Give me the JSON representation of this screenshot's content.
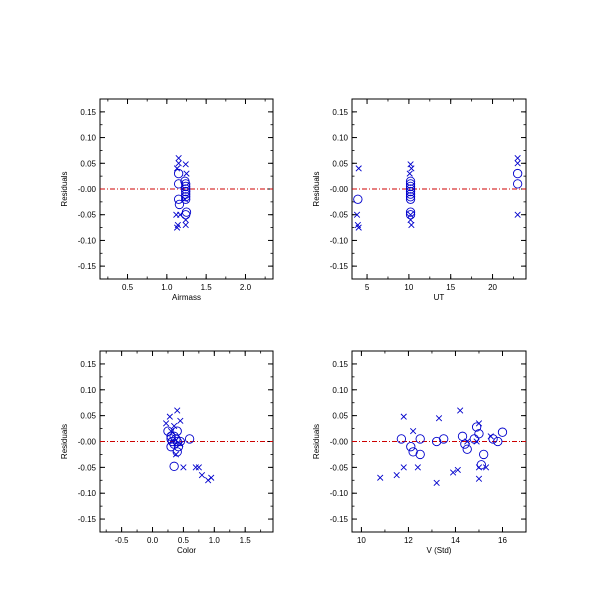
{
  "chart_data": [
    {
      "type": "scatter",
      "xlabel": "Airmass",
      "ylabel": "Residuals",
      "xlim": [
        0.15,
        2.35
      ],
      "ylim": [
        -0.175,
        0.175
      ],
      "xticks": [
        0.5,
        1.0,
        1.5,
        2.0
      ],
      "xtick_labels": [
        "0.5",
        "1.0",
        "1.5",
        "2.0"
      ],
      "yticks": [
        -0.15,
        -0.1,
        -0.05,
        0.0,
        0.05,
        0.1,
        0.15
      ],
      "ytick_labels": [
        "-0.15",
        "-0.10",
        "-0.05",
        "-0.00",
        "0.05",
        "0.10",
        "0.15"
      ],
      "zero_line": true,
      "marker_color": "#0000cc",
      "zero_line_color": "#cc0000",
      "series": [
        {
          "marker": "x",
          "points": [
            [
              1.15,
              0.06
            ],
            [
              1.15,
              0.05
            ],
            [
              1.13,
              0.04
            ],
            [
              1.12,
              -0.05
            ],
            [
              1.14,
              -0.07
            ],
            [
              1.13,
              -0.075
            ],
            [
              1.17,
              -0.05
            ],
            [
              1.24,
              0.048
            ],
            [
              1.25,
              0.03
            ],
            [
              1.24,
              -0.06
            ],
            [
              1.24,
              -0.07
            ],
            [
              1.23,
              -0.02
            ]
          ]
        },
        {
          "marker": "o",
          "points": [
            [
              1.15,
              0.03
            ],
            [
              1.15,
              0.01
            ],
            [
              1.15,
              -0.02
            ],
            [
              1.16,
              -0.03
            ],
            [
              1.23,
              0.015
            ],
            [
              1.24,
              0.01
            ],
            [
              1.24,
              0.005
            ],
            [
              1.24,
              0.0
            ],
            [
              1.24,
              -0.005
            ],
            [
              1.24,
              -0.01
            ],
            [
              1.24,
              -0.015
            ],
            [
              1.24,
              -0.02
            ],
            [
              1.25,
              -0.045
            ],
            [
              1.24,
              -0.05
            ]
          ]
        }
      ]
    },
    {
      "type": "scatter",
      "xlabel": "UT",
      "ylabel": "Residuals",
      "xlim": [
        3.2,
        24.0
      ],
      "ylim": [
        -0.175,
        0.175
      ],
      "xticks": [
        5,
        10,
        15,
        20
      ],
      "xtick_labels": [
        "5",
        "10",
        "15",
        "20"
      ],
      "yticks": [
        -0.15,
        -0.1,
        -0.05,
        0.0,
        0.05,
        0.1,
        0.15
      ],
      "ytick_labels": [
        "-0.15",
        "-0.10",
        "-0.05",
        "-0.00",
        "0.05",
        "0.10",
        "0.15"
      ],
      "zero_line": true,
      "marker_color": "#0000cc",
      "zero_line_color": "#cc0000",
      "series": [
        {
          "marker": "x",
          "points": [
            [
              4.0,
              0.04
            ],
            [
              3.8,
              -0.05
            ],
            [
              3.9,
              -0.07
            ],
            [
              4.0,
              -0.075
            ],
            [
              10.2,
              0.048
            ],
            [
              10.3,
              0.04
            ],
            [
              10.1,
              0.03
            ],
            [
              10.2,
              -0.05
            ],
            [
              10.2,
              -0.06
            ],
            [
              10.3,
              -0.07
            ],
            [
              23.0,
              0.06
            ],
            [
              23.0,
              0.05
            ],
            [
              23.0,
              -0.05
            ]
          ]
        },
        {
          "marker": "o",
          "points": [
            [
              3.9,
              -0.02
            ],
            [
              10.2,
              0.015
            ],
            [
              10.2,
              0.01
            ],
            [
              10.2,
              0.005
            ],
            [
              10.2,
              0.0
            ],
            [
              10.2,
              -0.005
            ],
            [
              10.2,
              -0.01
            ],
            [
              10.2,
              -0.015
            ],
            [
              10.2,
              -0.02
            ],
            [
              10.2,
              -0.045
            ],
            [
              10.2,
              -0.05
            ],
            [
              23.0,
              0.03
            ],
            [
              23.0,
              0.01
            ]
          ]
        }
      ]
    },
    {
      "type": "scatter",
      "xlabel": "Color",
      "ylabel": "Residuals",
      "xlim": [
        -0.85,
        1.95
      ],
      "ylim": [
        -0.175,
        0.175
      ],
      "xticks": [
        -0.5,
        0.0,
        0.5,
        1.0,
        1.5
      ],
      "xtick_labels": [
        "-0.5",
        "0.0",
        "0.5",
        "1.0",
        "1.5"
      ],
      "yticks": [
        -0.15,
        -0.1,
        -0.05,
        0.0,
        0.05,
        0.1,
        0.15
      ],
      "ytick_labels": [
        "-0.15",
        "-0.10",
        "-0.05",
        "-0.00",
        "0.05",
        "0.10",
        "0.15"
      ],
      "zero_line": true,
      "marker_color": "#0000cc",
      "zero_line_color": "#cc0000",
      "series": [
        {
          "marker": "x",
          "points": [
            [
              0.22,
              0.035
            ],
            [
              0.28,
              0.048
            ],
            [
              0.35,
              0.03
            ],
            [
              0.4,
              0.06
            ],
            [
              0.45,
              0.04
            ],
            [
              0.3,
              0.02
            ],
            [
              0.38,
              -0.025
            ],
            [
              0.5,
              -0.05
            ],
            [
              0.7,
              -0.05
            ],
            [
              0.75,
              -0.05
            ],
            [
              0.8,
              -0.065
            ],
            [
              0.9,
              -0.075
            ],
            [
              0.95,
              -0.07
            ],
            [
              0.45,
              -0.005
            ]
          ]
        },
        {
          "marker": "o",
          "points": [
            [
              0.25,
              0.02
            ],
            [
              0.3,
              0.01
            ],
            [
              0.3,
              0.005
            ],
            [
              0.32,
              0.0
            ],
            [
              0.35,
              -0.005
            ],
            [
              0.35,
              0.01
            ],
            [
              0.38,
              0.005
            ],
            [
              0.4,
              0.02
            ],
            [
              0.4,
              0.0
            ],
            [
              0.42,
              -0.01
            ],
            [
              0.45,
              0.0
            ],
            [
              0.3,
              -0.01
            ],
            [
              0.4,
              -0.02
            ],
            [
              0.6,
              0.005
            ],
            [
              0.35,
              -0.048
            ]
          ]
        }
      ]
    },
    {
      "type": "scatter",
      "xlabel": "V (Std)",
      "ylabel": "Residuals",
      "xlim": [
        9.6,
        17.0
      ],
      "ylim": [
        -0.175,
        0.175
      ],
      "xticks": [
        10,
        12,
        14,
        16
      ],
      "xtick_labels": [
        "10",
        "12",
        "14",
        "16"
      ],
      "yticks": [
        -0.15,
        -0.1,
        -0.05,
        0.0,
        0.05,
        0.1,
        0.15
      ],
      "ytick_labels": [
        "-0.15",
        "-0.10",
        "-0.05",
        "-0.00",
        "0.05",
        "0.10",
        "0.15"
      ],
      "zero_line": true,
      "marker_color": "#0000cc",
      "zero_line_color": "#cc0000",
      "series": [
        {
          "marker": "x",
          "points": [
            [
              10.8,
              -0.07
            ],
            [
              11.5,
              -0.065
            ],
            [
              11.8,
              0.048
            ],
            [
              11.8,
              -0.05
            ],
            [
              12.2,
              0.02
            ],
            [
              12.4,
              -0.05
            ],
            [
              13.2,
              -0.08
            ],
            [
              13.3,
              0.045
            ],
            [
              13.9,
              -0.06
            ],
            [
              14.1,
              -0.055
            ],
            [
              14.2,
              0.06
            ],
            [
              14.5,
              0.0
            ],
            [
              14.9,
              0.0
            ],
            [
              15.0,
              0.035
            ],
            [
              15.0,
              -0.05
            ],
            [
              15.0,
              -0.072
            ],
            [
              15.3,
              -0.05
            ],
            [
              15.5,
              0.01
            ]
          ]
        },
        {
          "marker": "o",
          "points": [
            [
              11.7,
              0.005
            ],
            [
              12.1,
              -0.01
            ],
            [
              12.2,
              -0.02
            ],
            [
              12.5,
              0.005
            ],
            [
              12.5,
              -0.025
            ],
            [
              13.2,
              0.0
            ],
            [
              13.5,
              0.005
            ],
            [
              14.3,
              0.01
            ],
            [
              14.4,
              -0.005
            ],
            [
              14.5,
              -0.015
            ],
            [
              14.8,
              0.005
            ],
            [
              14.9,
              0.028
            ],
            [
              15.0,
              0.015
            ],
            [
              15.1,
              -0.045
            ],
            [
              15.2,
              -0.025
            ],
            [
              15.6,
              0.005
            ],
            [
              15.8,
              0.0
            ],
            [
              16.0,
              0.018
            ]
          ]
        }
      ]
    }
  ]
}
